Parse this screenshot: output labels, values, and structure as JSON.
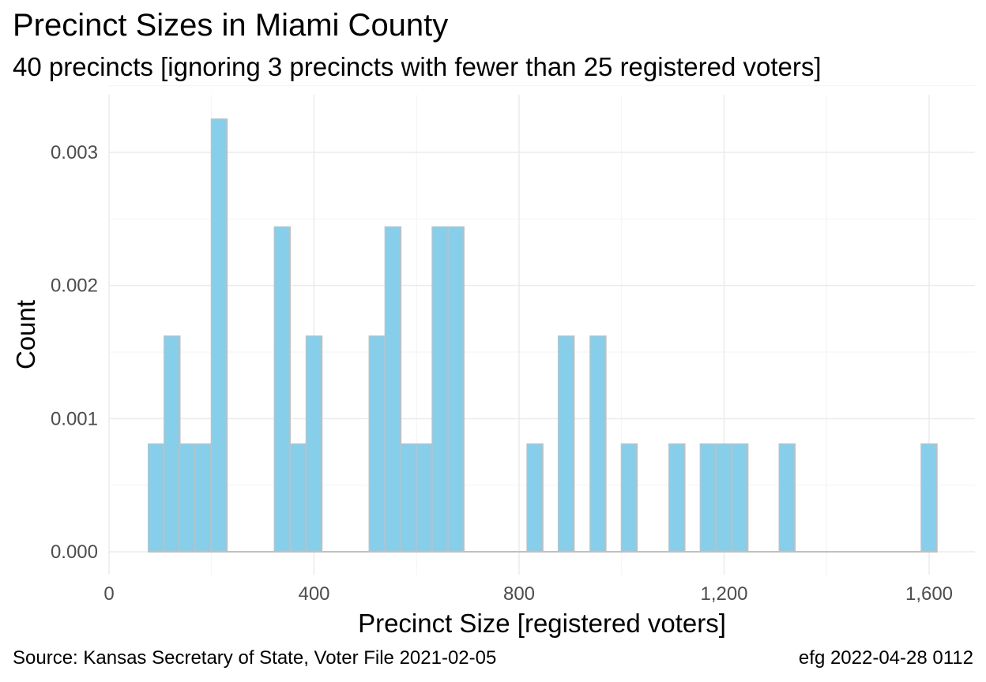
{
  "title": "Precinct Sizes in Miami County",
  "subtitle": "40 precincts [ignoring 3 precincts with fewer than 25 registered voters]",
  "caption_left": "Source:  Kansas Secretary of State, Voter File  2021-02-05",
  "caption_right": "efg 2022-04-28 0112",
  "colors": {
    "bar_fill": "#87ceeb",
    "bar_stroke": "#c0c0c0",
    "grid_major": "#ebebeb",
    "grid_minor": "#f3f3f3"
  },
  "chart_data": {
    "type": "bar",
    "xlabel": "Precinct Size [registered voters]",
    "ylabel": "Count",
    "xlim": [
      0,
      1650
    ],
    "ylim": [
      0,
      0.0033
    ],
    "x_ticks": [
      0,
      400,
      800,
      1200,
      1600
    ],
    "x_tick_labels": [
      "0",
      "400",
      "800",
      "1,200",
      "1,600"
    ],
    "y_ticks": [
      0,
      0.001,
      0.002,
      0.003
    ],
    "y_tick_labels": [
      "0.000",
      "0.001",
      "0.002",
      "0.003"
    ],
    "bin_width": 30.8,
    "bins": [
      {
        "x": 92,
        "value": 0.00081
      },
      {
        "x": 123,
        "value": 0.00162
      },
      {
        "x": 153,
        "value": 0.00081
      },
      {
        "x": 184,
        "value": 0.00081
      },
      {
        "x": 215,
        "value": 0.00325
      },
      {
        "x": 338,
        "value": 0.00244
      },
      {
        "x": 369,
        "value": 0.00081
      },
      {
        "x": 400,
        "value": 0.00162
      },
      {
        "x": 523,
        "value": 0.00162
      },
      {
        "x": 554,
        "value": 0.00244
      },
      {
        "x": 584,
        "value": 0.00081
      },
      {
        "x": 615,
        "value": 0.00081
      },
      {
        "x": 646,
        "value": 0.00244
      },
      {
        "x": 677,
        "value": 0.00244
      },
      {
        "x": 831,
        "value": 0.00081
      },
      {
        "x": 892,
        "value": 0.00162
      },
      {
        "x": 954,
        "value": 0.00162
      },
      {
        "x": 1015,
        "value": 0.00081
      },
      {
        "x": 1108,
        "value": 0.00081
      },
      {
        "x": 1169,
        "value": 0.00081
      },
      {
        "x": 1200,
        "value": 0.00081
      },
      {
        "x": 1231,
        "value": 0.00081
      },
      {
        "x": 1323,
        "value": 0.00081
      },
      {
        "x": 1600,
        "value": 0.00081
      }
    ]
  }
}
